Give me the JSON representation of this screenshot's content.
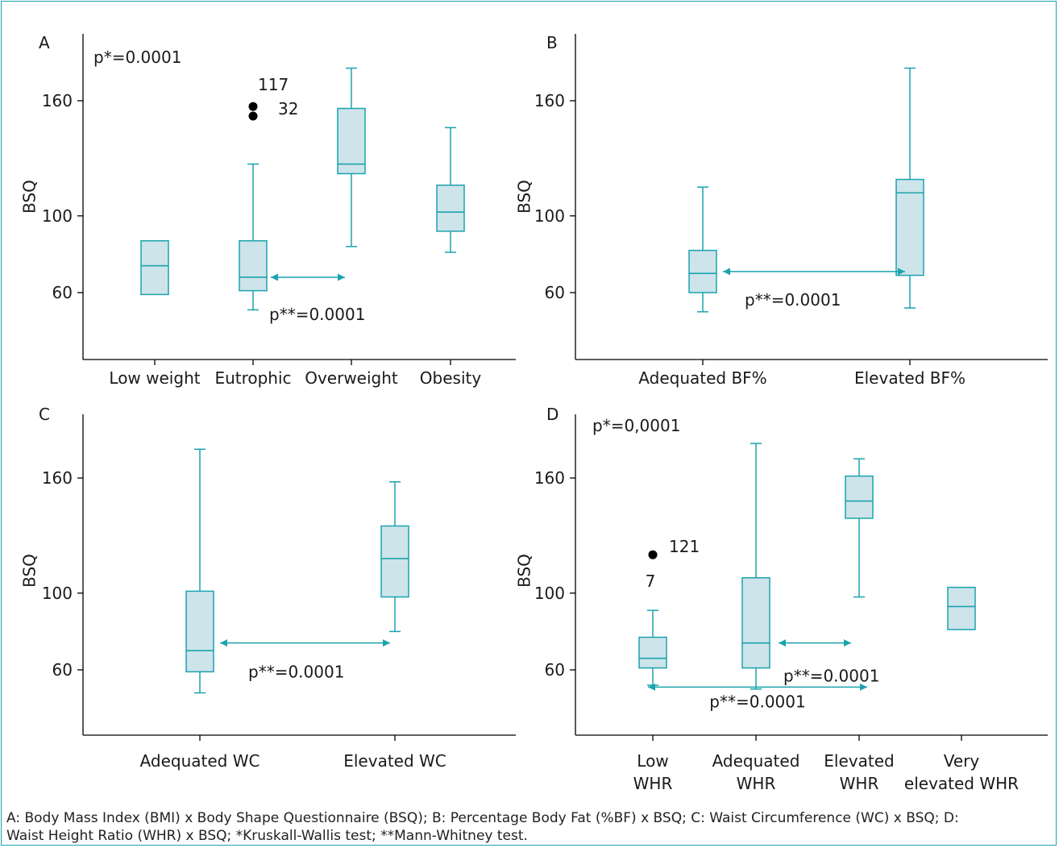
{
  "colors": {
    "box_fill": "#cde4ea",
    "box_stroke": "#1aa3ad",
    "axis": "#000000",
    "outlier": "#000000"
  },
  "caption": {
    "line1": "A: Body Mass Index (BMI) x Body Shape Questionnaire (BSQ); B: Percentage Body Fat (%BF) x BSQ; C: Waist Circumference (WC) x BSQ; D:",
    "line2": "Waist Height Ratio (WHR) x BSQ; *Kruskall-Wallis test; **Mann-Whitney test."
  },
  "chart_data": [
    {
      "panel": "A",
      "type": "box",
      "ylabel": "BSQ",
      "yticks": [
        60,
        100,
        160
      ],
      "ylim": [
        34,
        187
      ],
      "categories": [
        [
          "Low weight"
        ],
        [
          "Eutrophic"
        ],
        [
          "Overweight"
        ],
        [
          "Obesity"
        ]
      ],
      "boxes": [
        {
          "whisker_low": null,
          "q1": 59,
          "median": 74,
          "q3": 87,
          "whisker_high": null
        },
        {
          "whisker_low": 51,
          "q1": 61,
          "median": 68,
          "q3": 87,
          "whisker_high": 127
        },
        {
          "whisker_low": 84,
          "q1": 122,
          "median": 127,
          "q3": 156,
          "whisker_high": 177
        },
        {
          "whisker_low": 81,
          "q1": 92,
          "median": 102,
          "q3": 116,
          "whisker_high": 146
        }
      ],
      "outliers": [
        {
          "category": 1,
          "value": 157,
          "label": "117"
        },
        {
          "category": 1,
          "value": 152,
          "label": "32"
        }
      ],
      "stat_text": "p*=0.0001",
      "comparisons": [
        {
          "from": 1,
          "to": 2,
          "y": 68,
          "label": "p**=0.0001"
        }
      ]
    },
    {
      "panel": "B",
      "type": "box",
      "ylabel": "BSQ",
      "yticks": [
        60,
        100,
        160
      ],
      "ylim": [
        34,
        187
      ],
      "categories": [
        [
          "Adequated BF%"
        ],
        [
          "Elevated BF%"
        ]
      ],
      "boxes": [
        {
          "whisker_low": 50,
          "q1": 60,
          "median": 70,
          "q3": 82,
          "whisker_high": 115
        },
        {
          "whisker_low": 52,
          "q1": 69,
          "median": 112,
          "q3": 119,
          "whisker_high": 177
        }
      ],
      "outliers": [],
      "stat_text": "",
      "comparisons": [
        {
          "from": 0,
          "to": 1,
          "y": 71,
          "label": "p**=0.0001"
        }
      ]
    },
    {
      "panel": "C",
      "type": "box",
      "ylabel": "BSQ",
      "yticks": [
        60,
        100,
        160
      ],
      "ylim": [
        34,
        187
      ],
      "categories": [
        [
          "Adequated WC"
        ],
        [
          "Elevated WC"
        ]
      ],
      "boxes": [
        {
          "whisker_low": 48,
          "q1": 59,
          "median": 70,
          "q3": 101,
          "whisker_high": 175
        },
        {
          "whisker_low": 80,
          "q1": 98,
          "median": 118,
          "q3": 135,
          "whisker_high": 158
        }
      ],
      "outliers": [],
      "stat_text": "",
      "comparisons": [
        {
          "from": 0,
          "to": 1,
          "y": 74,
          "label": "p**=0.0001"
        }
      ]
    },
    {
      "panel": "D",
      "type": "box",
      "ylabel": "BSQ",
      "yticks": [
        60,
        100,
        160
      ],
      "ylim": [
        34,
        187
      ],
      "categories": [
        [
          "Low",
          "WHR"
        ],
        [
          "Adequated",
          "WHR"
        ],
        [
          "Elevated",
          "WHR"
        ],
        [
          "Very",
          "elevated WHR"
        ]
      ],
      "boxes": [
        {
          "whisker_low": 52,
          "q1": 61,
          "median": 66,
          "q3": 77,
          "whisker_high": 91
        },
        {
          "whisker_low": 50,
          "q1": 61,
          "median": 74,
          "q3": 108,
          "whisker_high": 178
        },
        {
          "whisker_low": 98,
          "q1": 139,
          "median": 148,
          "q3": 161,
          "whisker_high": 170
        },
        {
          "whisker_low": null,
          "q1": 81,
          "median": 93,
          "q3": 103,
          "whisker_high": null
        }
      ],
      "outliers": [
        {
          "category": 0,
          "value": 120,
          "label": "121",
          "label2": "7"
        }
      ],
      "stat_text": "p*=0,0001",
      "comparisons": [
        {
          "from": 1,
          "to": 2,
          "y": 74,
          "label": "p**=0.0001"
        },
        {
          "from": 0,
          "to": 2,
          "y": 51,
          "label": "p**=0.0001"
        }
      ]
    }
  ]
}
